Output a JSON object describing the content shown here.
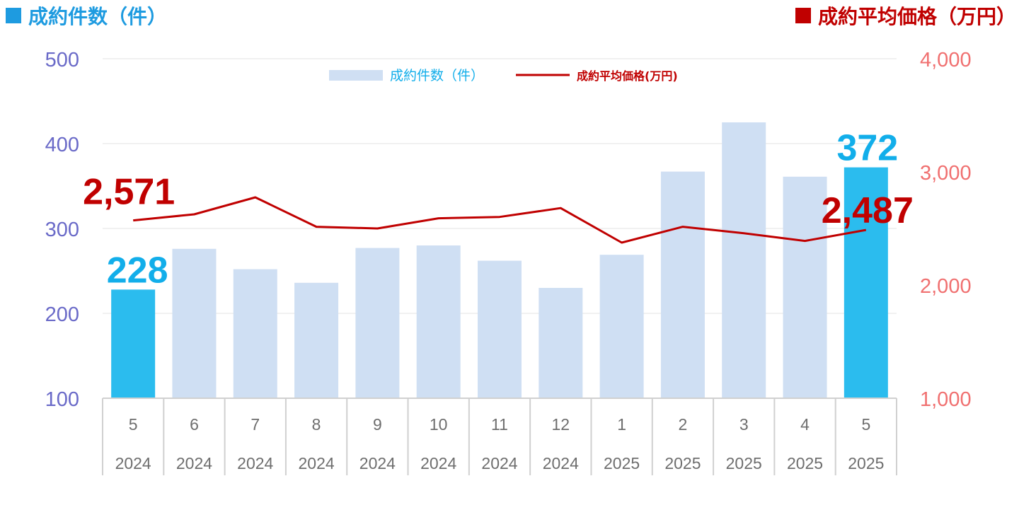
{
  "header": {
    "left_title": "成約件数（件）",
    "right_title": "成約平均価格（万円）"
  },
  "colors": {
    "left_accent": "#1E9BE0",
    "right_accent": "#C00000",
    "bar_highlight": "#2BBCEE",
    "bar_normal": "#CFDFF3",
    "left_axis_text": "#6A6AC8",
    "right_axis_text": "#F07070",
    "label_blue": "#12AEEA",
    "label_red": "#C00000"
  },
  "legend": {
    "bar_label": "成約件数（件）",
    "line_label": "成約平均価格(万円)",
    "position": "top-center"
  },
  "chart_data": {
    "type": "bar",
    "categories": [
      {
        "month": "5",
        "year": "2024"
      },
      {
        "month": "6",
        "year": "2024"
      },
      {
        "month": "7",
        "year": "2024"
      },
      {
        "month": "8",
        "year": "2024"
      },
      {
        "month": "9",
        "year": "2024"
      },
      {
        "month": "10",
        "year": "2024"
      },
      {
        "month": "11",
        "year": "2024"
      },
      {
        "month": "12",
        "year": "2024"
      },
      {
        "month": "1",
        "year": "2025"
      },
      {
        "month": "2",
        "year": "2025"
      },
      {
        "month": "3",
        "year": "2025"
      },
      {
        "month": "4",
        "year": "2025"
      },
      {
        "month": "5",
        "year": "2025"
      }
    ],
    "series": [
      {
        "name": "成約件数（件）",
        "type": "bar",
        "axis": "left",
        "values": [
          228,
          276,
          252,
          236,
          277,
          280,
          262,
          230,
          269,
          367,
          425,
          361,
          372
        ],
        "highlight_indices": [
          0,
          12
        ]
      },
      {
        "name": "成約平均価格(万円)",
        "type": "line",
        "axis": "right",
        "values": [
          2571,
          2625,
          2775,
          2515,
          2500,
          2590,
          2602,
          2680,
          2375,
          2515,
          2458,
          2390,
          2487
        ]
      }
    ],
    "left_axis": {
      "min": 100,
      "max": 500,
      "ticks": [
        "100",
        "200",
        "300",
        "400",
        "500"
      ]
    },
    "right_axis": {
      "min": 1000,
      "max": 4000,
      "ticks": [
        "1,000",
        "2,000",
        "3,000",
        "4,000"
      ]
    },
    "grid": true,
    "annotations": [
      {
        "series": 0,
        "index": 0,
        "text": "228"
      },
      {
        "series": 0,
        "index": 12,
        "text": "372"
      },
      {
        "series": 1,
        "index": 0,
        "text": "2,571"
      },
      {
        "series": 1,
        "index": 12,
        "text": "2,487"
      }
    ]
  }
}
